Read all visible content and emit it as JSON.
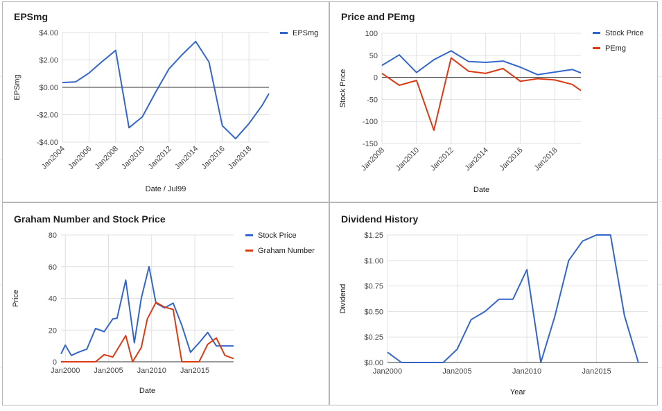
{
  "chart_data": [
    {
      "id": "eps",
      "type": "line",
      "title": "EPSmg",
      "xlabel": "Date / Jul99",
      "ylabel": "EPSmg",
      "x_ticks": [
        "Jan2004",
        "Jan2006",
        "Jan2008",
        "Jan2010",
        "Jan2012",
        "Jan2014",
        "Jan2016",
        "Jan2018"
      ],
      "y_ticks": [
        "$4.00",
        "$2.00",
        "$0.00",
        "-$2.00",
        "-$4.00"
      ],
      "xlim": [
        2004,
        2019.5
      ],
      "ylim": [
        -4,
        4
      ],
      "zero_line": true,
      "legend": "right",
      "series": [
        {
          "name": "EPSmg",
          "color": "#3366cc",
          "x": [
            2004,
            2005,
            2006,
            2007,
            2008,
            2009,
            2010,
            2011,
            2012,
            2013,
            2014,
            2015,
            2016,
            2017,
            2018,
            2019,
            2019.5
          ],
          "y": [
            0.35,
            0.4,
            1.05,
            1.9,
            2.7,
            -2.95,
            -2.15,
            -0.35,
            1.35,
            2.4,
            3.35,
            1.85,
            -2.8,
            -3.75,
            -2.65,
            -1.3,
            -0.45
          ]
        }
      ]
    },
    {
      "id": "price_pe",
      "type": "line",
      "title": "Price and PEmg",
      "xlabel": "Date",
      "ylabel": "Stock Price",
      "x_ticks": [
        "Jan2008",
        "Jan2010",
        "Jan2012",
        "Jan2014",
        "Jan2016",
        "Jan2018"
      ],
      "y_ticks": [
        "100",
        "50",
        "0",
        "-50",
        "-100",
        "-150"
      ],
      "xlim": [
        2008,
        2019.5
      ],
      "ylim": [
        -150,
        100
      ],
      "zero_line": true,
      "legend": "right",
      "series": [
        {
          "name": "Stock Price",
          "color": "#3366cc",
          "x": [
            2008,
            2009,
            2010,
            2011,
            2012,
            2013,
            2014,
            2015,
            2016,
            2017,
            2018,
            2019,
            2019.5
          ],
          "y": [
            27,
            51,
            11,
            40,
            60,
            36,
            34,
            37,
            23,
            6,
            12,
            18,
            10
          ]
        },
        {
          "name": "PEmg",
          "color": "#dc3912",
          "x": [
            2008,
            2009,
            2010,
            2011,
            2012,
            2013,
            2014,
            2015,
            2016,
            2017,
            2018,
            2019,
            2019.5
          ],
          "y": [
            9,
            -18,
            -7,
            -120,
            44,
            14,
            9,
            20,
            -9,
            -3,
            -6,
            -16,
            -30
          ]
        }
      ]
    },
    {
      "id": "graham",
      "type": "line",
      "title": "Graham Number and Stock Price",
      "xlabel": "Date",
      "ylabel": "Price",
      "x_ticks": [
        "Jan2000",
        "Jan2005",
        "Jan2010",
        "Jan2015"
      ],
      "y_ticks": [
        "80",
        "60",
        "40",
        "20",
        "0"
      ],
      "xlim": [
        1999.5,
        2019.5
      ],
      "ylim": [
        0,
        80
      ],
      "legend": "right",
      "series": [
        {
          "name": "Stock Price",
          "color": "#3366cc",
          "x": [
            1999.5,
            2000,
            2000.7,
            2001.5,
            2002.5,
            2003.5,
            2004.5,
            2005.5,
            2006,
            2007,
            2008,
            2008.8,
            2009.7,
            2010.5,
            2011.5,
            2012.5,
            2013.5,
            2014.5,
            2015.5,
            2016.5,
            2017.5,
            2018.5,
            2019.5
          ],
          "y": [
            5,
            10.5,
            4,
            6,
            8,
            21,
            19,
            27,
            27.5,
            51.5,
            12,
            40,
            60,
            37,
            34,
            37,
            23,
            6,
            12,
            18.5,
            10,
            10,
            10
          ]
        },
        {
          "name": "Graham Number",
          "color": "#dc3912",
          "x": [
            1999.5,
            2003.5,
            2004.5,
            2005.5,
            2006.5,
            2007,
            2007.8,
            2008.8,
            2009.5,
            2010.5,
            2011.5,
            2012.5,
            2013.5,
            2014.5,
            2015.5,
            2016.5,
            2017.5,
            2018.5,
            2019.5
          ],
          "y": [
            0,
            0,
            4.5,
            3,
            12,
            16.5,
            0,
            9,
            27,
            37.5,
            34.5,
            33,
            0,
            0,
            0,
            11,
            15,
            4,
            2
          ]
        }
      ]
    },
    {
      "id": "dividend",
      "type": "line",
      "title": "Dividend History",
      "xlabel": "Year",
      "ylabel": "Dividend",
      "x_ticks": [
        "Jan2000",
        "Jan2005",
        "Jan2010",
        "Jan2015"
      ],
      "y_ticks": [
        "$1.25",
        "$1.00",
        "$0.75",
        "$0.50",
        "$0.25",
        "$0.00"
      ],
      "xlim": [
        2000,
        2018.7
      ],
      "ylim": [
        0,
        1.25
      ],
      "legend": "none",
      "series": [
        {
          "name": "",
          "color": "#3366cc",
          "x": [
            2000,
            2001,
            2002,
            2003,
            2004,
            2005,
            2006,
            2007,
            2008,
            2009,
            2010,
            2011,
            2012,
            2013,
            2014,
            2015,
            2016,
            2017,
            2018
          ],
          "y": [
            0.1,
            0,
            0,
            0,
            0,
            0.13,
            0.42,
            0.5,
            0.62,
            0.62,
            0.91,
            0,
            0.45,
            1.0,
            1.19,
            1.25,
            1.25,
            0.46,
            0
          ]
        }
      ]
    }
  ]
}
